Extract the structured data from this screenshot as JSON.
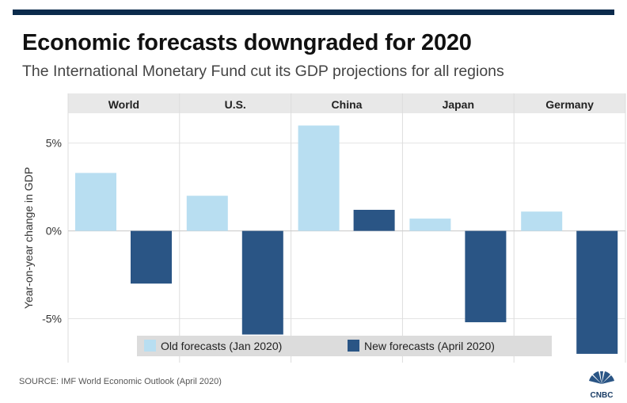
{
  "header": {
    "title": "Economic forecasts downgraded for 2020",
    "subtitle": "The International Monetary Fund cut its GDP projections for all regions"
  },
  "footer": {
    "source": "SOURCE: IMF World Economic Outlook (April 2020)",
    "logo_text": "CNBC"
  },
  "colors": {
    "old": "#b8def1",
    "new": "#2a5585",
    "panel_header": "#e8e8e8",
    "legend_bg": "#dcdcdc",
    "brand_bar": "#0b2b4c"
  },
  "chart_data": {
    "type": "bar",
    "title": "Economic forecasts downgraded for 2020",
    "subtitle": "The International Monetary Fund cut its GDP projections for all regions",
    "ylabel": "Year-on-year change in GDP",
    "categories": [
      "World",
      "U.S.",
      "China",
      "Japan",
      "Germany"
    ],
    "series": [
      {
        "name": "Old forecasts (Jan 2020)",
        "values": [
          3.3,
          2.0,
          6.0,
          0.7,
          1.1
        ]
      },
      {
        "name": "New forecasts (April 2020)",
        "values": [
          -3.0,
          -5.9,
          1.2,
          -5.2,
          -7.0
        ]
      }
    ],
    "ylim": [
      -7.5,
      6.7
    ],
    "yticks": [
      5,
      0,
      -5
    ],
    "ytick_labels": [
      "5%",
      "0%",
      "-5%"
    ],
    "grid": true,
    "legend": "bottom"
  }
}
